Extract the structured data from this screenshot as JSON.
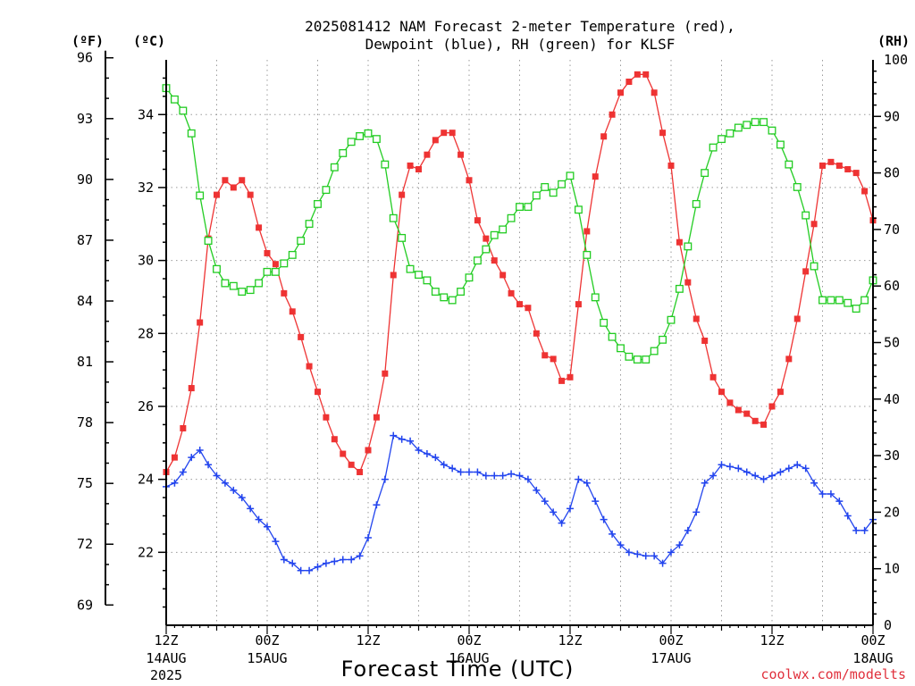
{
  "chart_data": {
    "type": "line",
    "title_line1": "2025081412 NAM Forecast 2-meter Temperature (red),",
    "title_line2": "Dewpoint (blue), RH (green) for KLSF",
    "xlabel": "Forecast Time (UTC)",
    "credit": "coolwx.com/modelts",
    "units": {
      "left_outer": "(ºF)",
      "left_inner": "(ºC)",
      "right": "(RH)"
    },
    "colors": {
      "temperature": "#ee3333",
      "dewpoint": "#2244ee",
      "rh": "#22cc22",
      "grid": "#9a9a9a"
    },
    "grid": true,
    "x_hours_range": [
      0,
      84
    ],
    "x_ticks": [
      {
        "label": "12Z",
        "date": "14AUG",
        "year": "2025"
      },
      {
        "label": "00Z",
        "date": "15AUG",
        "year": ""
      },
      {
        "label": "12Z",
        "date": "",
        "year": ""
      },
      {
        "label": "00Z",
        "date": "16AUG",
        "year": ""
      },
      {
        "label": "12Z",
        "date": "",
        "year": ""
      },
      {
        "label": "00Z",
        "date": "17AUG",
        "year": ""
      },
      {
        "label": "12Z",
        "date": "",
        "year": ""
      },
      {
        "label": "00Z",
        "date": "18AUG",
        "year": ""
      }
    ],
    "y_celsius_range": [
      20,
      35.5
    ],
    "y_celsius_ticks": [
      "22",
      "24",
      "26",
      "28",
      "30",
      "32",
      "34"
    ],
    "y_fahrenheit_ticks": [
      "69",
      "72",
      "75",
      "78",
      "81",
      "84",
      "87",
      "90",
      "93",
      "96"
    ],
    "y_rh_range": [
      0,
      100
    ],
    "y_rh_ticks": [
      "0",
      "10",
      "20",
      "30",
      "40",
      "50",
      "60",
      "70",
      "80",
      "90",
      "100"
    ],
    "series": [
      {
        "name": "Temperature",
        "units": "C",
        "values": [
          24.2,
          24.6,
          25.4,
          26.5,
          28.3,
          30.6,
          31.8,
          32.2,
          32.0,
          32.2,
          31.8,
          30.9,
          30.2,
          29.9,
          29.1,
          28.6,
          27.9,
          27.1,
          26.4,
          25.7,
          25.1,
          24.7,
          24.4,
          24.2,
          24.8,
          25.7,
          26.9,
          29.6,
          31.8,
          32.6,
          32.5,
          32.9,
          33.3,
          33.5,
          33.5,
          32.9,
          32.2,
          31.1,
          30.6,
          30.0,
          29.6,
          29.1,
          28.8,
          28.7,
          28.0,
          27.4,
          27.3,
          26.7,
          26.8,
          28.8,
          30.8,
          32.3,
          33.4,
          34.0,
          34.6,
          34.9,
          35.1,
          35.1,
          34.6,
          33.5,
          32.6,
          30.5,
          29.4,
          28.4,
          27.8,
          26.8,
          26.4,
          26.1,
          25.9,
          25.8,
          25.6,
          25.5,
          26.0,
          26.4,
          27.3,
          28.4,
          29.7,
          31.0,
          32.6,
          32.7,
          32.6,
          32.5,
          32.4,
          31.9,
          31.1
        ]
      },
      {
        "name": "Dewpoint",
        "units": "C",
        "values": [
          23.8,
          23.9,
          24.2,
          24.6,
          24.8,
          24.4,
          24.1,
          23.9,
          23.7,
          23.5,
          23.2,
          22.9,
          22.7,
          22.3,
          21.8,
          21.7,
          21.5,
          21.5,
          21.6,
          21.7,
          21.75,
          21.8,
          21.8,
          21.9,
          22.4,
          23.3,
          24.0,
          25.2,
          25.1,
          25.05,
          24.8,
          24.7,
          24.6,
          24.4,
          24.3,
          24.2,
          24.2,
          24.2,
          24.1,
          24.1,
          24.1,
          24.15,
          24.1,
          24.0,
          23.7,
          23.4,
          23.1,
          22.8,
          23.2,
          24.0,
          23.9,
          23.4,
          22.9,
          22.5,
          22.2,
          22.0,
          21.95,
          21.9,
          21.9,
          21.7,
          22.0,
          22.2,
          22.6,
          23.1,
          23.9,
          24.1,
          24.4,
          24.35,
          24.3,
          24.2,
          24.1,
          24.0,
          24.1,
          24.2,
          24.3,
          24.4,
          24.3,
          23.9,
          23.6,
          23.6,
          23.4,
          23.0,
          22.6,
          22.6,
          22.9
        ]
      },
      {
        "name": "RH",
        "units": "%",
        "values": [
          95,
          93,
          91,
          87,
          76,
          68,
          63,
          60.5,
          60,
          59,
          59.3,
          60.5,
          62.5,
          62.5,
          64,
          65.5,
          68,
          71,
          74.5,
          77,
          81,
          83.5,
          85.5,
          86.5,
          87,
          86,
          81.5,
          72,
          68.5,
          63,
          62,
          61,
          59,
          58,
          57.5,
          59,
          61.5,
          64.5,
          66.5,
          69,
          70,
          72,
          74,
          74,
          76,
          77.5,
          76.5,
          78,
          79.5,
          73.5,
          65.5,
          58,
          53.5,
          51,
          49,
          47.5,
          47,
          47,
          48.5,
          50.5,
          54,
          59.5,
          67,
          74.5,
          80,
          84.5,
          86,
          87,
          88,
          88.5,
          89,
          89,
          87.5,
          85,
          81.5,
          77.5,
          72.5,
          63.5,
          57.5,
          57.5,
          57.5,
          57,
          56,
          57.5,
          61
        ]
      }
    ]
  }
}
